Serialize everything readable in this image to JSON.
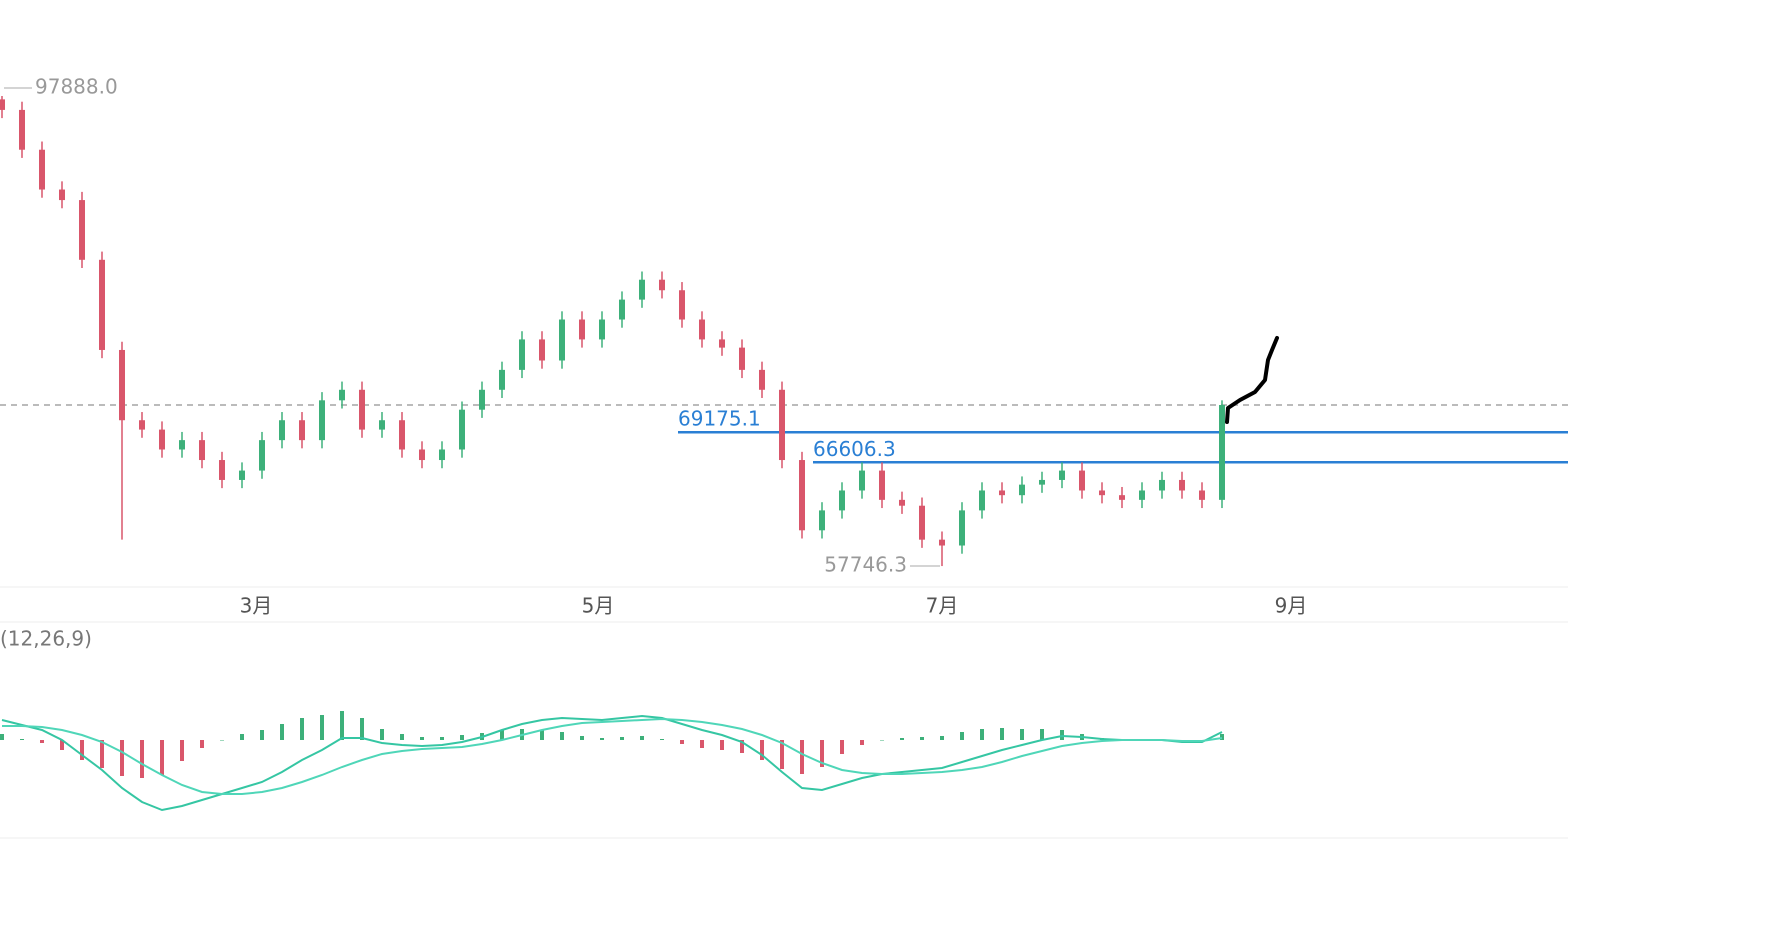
{
  "chart_data": {
    "type": "candlestick",
    "up_color": "#3db07a",
    "down_color": "#d9566b",
    "open": [
      97600,
      96700,
      93300,
      89900,
      89000,
      83900,
      76200,
      70200,
      69400,
      67700,
      68500,
      66800,
      65100,
      65900,
      68500,
      70200,
      68500,
      71900,
      72800,
      69400,
      70200,
      67700,
      66800,
      67700,
      71100,
      72800,
      74500,
      77100,
      75300,
      78800,
      77100,
      78800,
      80500,
      82200,
      81300,
      78800,
      77100,
      76400,
      74500,
      72800,
      66800,
      60800,
      62500,
      64200,
      65900,
      63400,
      62900,
      60000,
      59500,
      62500,
      64200,
      63800,
      64700,
      65100,
      65900,
      64200,
      63800,
      63400,
      64200,
      65100,
      64200,
      63400
    ],
    "high": [
      97888,
      97400,
      94000,
      90600,
      89700,
      84600,
      76900,
      70900,
      70100,
      69200,
      69200,
      67500,
      66600,
      69200,
      70900,
      70900,
      72600,
      73500,
      73500,
      70900,
      70900,
      68400,
      68400,
      71800,
      73500,
      75200,
      77800,
      77800,
      79500,
      79500,
      79500,
      81200,
      82900,
      82900,
      82000,
      79500,
      77800,
      77100,
      75200,
      73500,
      67500,
      63200,
      64900,
      66600,
      66600,
      64100,
      63600,
      60700,
      63200,
      64900,
      64900,
      65400,
      65800,
      66600,
      66600,
      64900,
      64500,
      64900,
      65800,
      65800,
      64900,
      71900
    ],
    "low": [
      96000,
      92600,
      89200,
      88300,
      83200,
      75500,
      60000,
      68700,
      67000,
      67000,
      66100,
      64400,
      64400,
      65200,
      67800,
      67800,
      67800,
      71200,
      68700,
      68700,
      67000,
      66100,
      66100,
      67000,
      70400,
      72100,
      73800,
      74600,
      74600,
      76400,
      76400,
      78100,
      79800,
      80600,
      78100,
      76400,
      75700,
      73800,
      72100,
      66100,
      60100,
      60100,
      61800,
      63500,
      62700,
      62200,
      59300,
      57746.3,
      58800,
      61800,
      63100,
      63100,
      64000,
      64400,
      63500,
      63100,
      62700,
      62700,
      63500,
      63500,
      62700,
      62700
    ],
    "close": [
      96700,
      93300,
      89900,
      89000,
      83900,
      76200,
      70200,
      69400,
      67700,
      68500,
      66800,
      65100,
      65900,
      68500,
      70200,
      68500,
      71900,
      72800,
      69400,
      70200,
      67700,
      66800,
      67700,
      71100,
      72800,
      74500,
      77100,
      75300,
      78800,
      77100,
      78800,
      80500,
      82200,
      81300,
      78800,
      77100,
      76400,
      74500,
      72800,
      66800,
      60800,
      62500,
      64200,
      65900,
      63400,
      62900,
      60000,
      59500,
      62500,
      64200,
      63800,
      64700,
      65100,
      65900,
      64200,
      63800,
      63400,
      64200,
      65100,
      64200,
      63400,
      71500
    ],
    "ylim": [
      55958,
      106086
    ],
    "xlim": [
      -0.1,
      78.3
    ],
    "xticks": [
      {
        "value": 12.7,
        "label": "3月"
      },
      {
        "value": 29.8,
        "label": "5月"
      },
      {
        "value": 47,
        "label": "7月"
      },
      {
        "value": 64.45,
        "label": "9月"
      }
    ],
    "high_marker": {
      "value": 97888,
      "label": "97888.0"
    },
    "low_marker": {
      "value": 57746.3,
      "label": "57746.3"
    },
    "levels": [
      {
        "value": 69175.1,
        "label": "69175.1",
        "from": 33.8,
        "color": "#2a7fd4"
      },
      {
        "value": 66606.3,
        "label": "66606.3",
        "from": 40.55,
        "color": "#2a7fd4"
      }
    ],
    "macd": {
      "label": "(12,26,9)",
      "ylim": [
        -90,
        90
      ],
      "dif_color": "#35c6a3",
      "dea_color": "#4fd6b8",
      "dif": [
        20,
        15,
        10,
        0,
        -15,
        -30,
        -48,
        -62,
        -70,
        -66,
        -60,
        -54,
        -48,
        -42,
        -32,
        -20,
        -10,
        2,
        2,
        -3,
        -5,
        -6,
        -5,
        -2,
        3,
        10,
        16,
        20,
        22,
        21,
        20,
        22,
        24,
        22,
        16,
        10,
        5,
        -2,
        -15,
        -32,
        -48,
        -50,
        -44,
        -38,
        -34,
        -32,
        -30,
        -28,
        -22,
        -16,
        -10,
        -5,
        0,
        4,
        3,
        1,
        0,
        0,
        0,
        -2,
        -2,
        8
      ],
      "dea": [
        14,
        14,
        13,
        10,
        5,
        -2,
        -12,
        -24,
        -35,
        -45,
        -52,
        -54,
        -54,
        -52,
        -48,
        -42,
        -35,
        -27,
        -20,
        -14,
        -11,
        -9,
        -8,
        -7,
        -4,
        0,
        5,
        10,
        14,
        17,
        18,
        19,
        20,
        21,
        20,
        18,
        15,
        11,
        5,
        -3,
        -14,
        -23,
        -30,
        -33,
        -34,
        -34,
        -33,
        -32,
        -30,
        -27,
        -22,
        -16,
        -11,
        -6,
        -3,
        -1,
        0,
        0,
        0,
        -1,
        -1,
        2
      ],
      "hist": [
        6,
        1,
        -3,
        -10,
        -20,
        -28,
        -36,
        -38,
        -35,
        -21,
        -8,
        0,
        6,
        10,
        16,
        22,
        25,
        29,
        22,
        11,
        6,
        3,
        3,
        5,
        7,
        10,
        11,
        10,
        8,
        4,
        2,
        3,
        4,
        1,
        -4,
        -8,
        -10,
        -13,
        -20,
        -29,
        -34,
        -27,
        -14,
        -5,
        0,
        2,
        3,
        4,
        8,
        11,
        12,
        11,
        11,
        10,
        6,
        2,
        0,
        0,
        0,
        -1,
        -1,
        6
      ]
    }
  }
}
